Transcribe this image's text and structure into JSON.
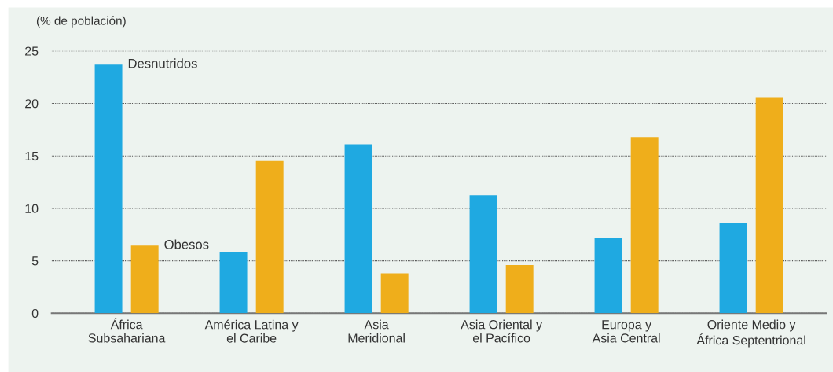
{
  "chart_data": {
    "type": "bar",
    "ylabel": "(% de población)",
    "categories": [
      "África\nSubsahariana",
      "América Latina y\nel Caribe",
      "Asia\nMeridional",
      "Asia Oriental y\nel Pacífico",
      "Europa y\nAsia Central",
      "Oriente Medio y\nÁfrica Septentrional"
    ],
    "series": [
      {
        "name": "Desnutridos",
        "color": "#1fa9e1",
        "values": [
          23.7,
          5.85,
          16.1,
          11.25,
          7.2,
          8.6
        ]
      },
      {
        "name": "Obesos",
        "color": "#efae1b",
        "values": [
          6.45,
          14.5,
          3.8,
          4.6,
          16.8,
          20.6
        ]
      }
    ],
    "ylim": [
      0,
      25
    ],
    "yticks": [
      0,
      5,
      10,
      15,
      20,
      25
    ],
    "grid": "y",
    "legend": false
  }
}
